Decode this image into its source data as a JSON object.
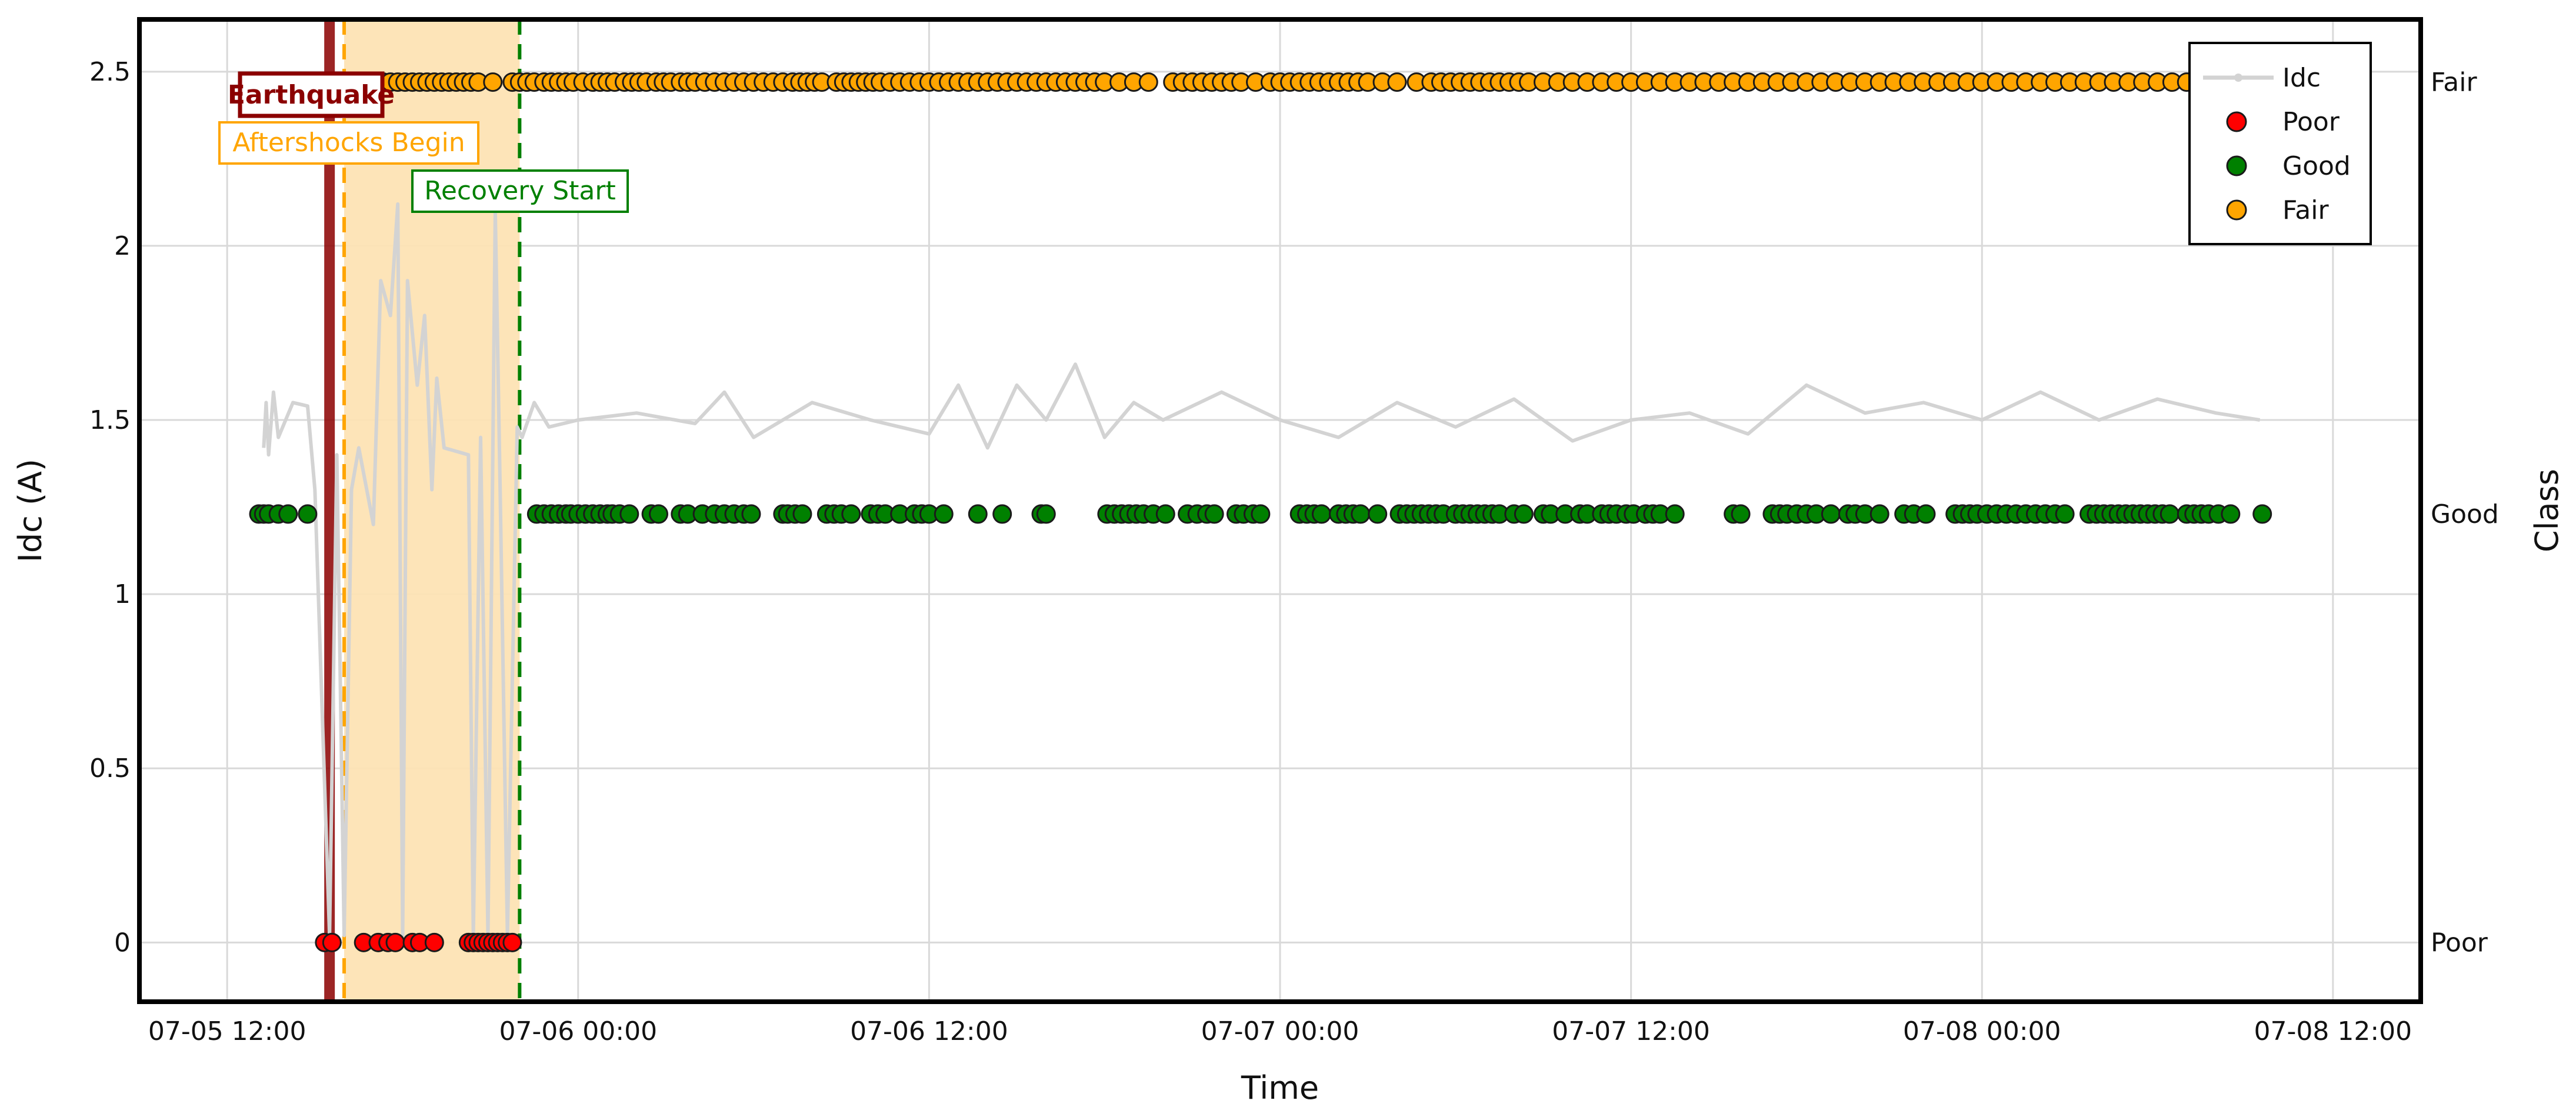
{
  "chart_data": {
    "type": "line+scatter",
    "xlabel": "Time",
    "ylabel": "Idc (A)",
    "y2label": "Class",
    "x_range": [
      "2024-07-05T09:00",
      "2024-07-08T15:00"
    ],
    "ylim": [
      -0.17,
      2.65
    ],
    "y_ticks": [
      0,
      0.5,
      1,
      1.5,
      2,
      2.5
    ],
    "y_tick_labels": [
      "0",
      "0.5",
      "1",
      "1.5",
      "2",
      "2.5"
    ],
    "x_ticks": [
      "2024-07-05T12:00",
      "2024-07-06T00:00",
      "2024-07-06T12:00",
      "2024-07-07T00:00",
      "2024-07-07T12:00",
      "2024-07-08T00:00",
      "2024-07-08T12:00"
    ],
    "x_tick_labels": [
      "07-05 12:00",
      "07-06 00:00",
      "07-06 12:00",
      "07-07 00:00",
      "07-07 12:00",
      "07-08 00:00",
      "07-08 12:00"
    ],
    "y2_ticks": [
      {
        "label": "Poor",
        "y": 0
      },
      {
        "label": "Good",
        "y": 1.23
      },
      {
        "label": "Fair",
        "y": 2.47
      }
    ],
    "grid": true,
    "legend_position": "top-right",
    "legend": [
      {
        "label": "Idc",
        "kind": "line",
        "color": "#d3d3d3"
      },
      {
        "label": "Poor",
        "kind": "marker",
        "color": "#ff0000"
      },
      {
        "label": "Good",
        "kind": "marker",
        "color": "#008000"
      },
      {
        "label": "Fair",
        "kind": "marker",
        "color": "#ffa500"
      }
    ],
    "events": [
      {
        "label": "Earthquake",
        "time": "2024-07-05T15:30",
        "color": "#8b0000"
      },
      {
        "label": "Aftershocks Begin",
        "time": "2024-07-05T16:00",
        "color": "#ffa500"
      },
      {
        "label": "Recovery Start",
        "time": "2024-07-05T22:00",
        "color": "#008000"
      }
    ],
    "shaded_region": {
      "from": "2024-07-05T16:00",
      "to": "2024-07-05T22:00",
      "color": "#fde3b4"
    },
    "series": [
      {
        "name": "Idc",
        "color": "#d3d3d3",
        "points": [
          [
            "2024-07-05T13:15",
            1.42
          ],
          [
            "2024-07-05T13:20",
            1.55
          ],
          [
            "2024-07-05T13:25",
            1.4
          ],
          [
            "2024-07-05T13:35",
            1.58
          ],
          [
            "2024-07-05T13:45",
            1.45
          ],
          [
            "2024-07-05T14:00",
            1.5
          ],
          [
            "2024-07-05T14:15",
            1.55
          ],
          [
            "2024-07-05T14:45",
            1.54
          ],
          [
            "2024-07-05T15:00",
            1.3
          ],
          [
            "2024-07-05T15:30",
            0.02
          ],
          [
            "2024-07-05T15:45",
            1.4
          ],
          [
            "2024-07-05T16:00",
            0.02
          ],
          [
            "2024-07-05T16:15",
            1.3
          ],
          [
            "2024-07-05T16:30",
            1.42
          ],
          [
            "2024-07-05T17:00",
            1.2
          ],
          [
            "2024-07-05T17:15",
            1.9
          ],
          [
            "2024-07-05T17:35",
            1.8
          ],
          [
            "2024-07-05T17:50",
            2.12
          ],
          [
            "2024-07-05T18:00",
            0.02
          ],
          [
            "2024-07-05T18:10",
            1.9
          ],
          [
            "2024-07-05T18:30",
            1.6
          ],
          [
            "2024-07-05T18:45",
            1.8
          ],
          [
            "2024-07-05T19:00",
            1.3
          ],
          [
            "2024-07-05T19:10",
            1.62
          ],
          [
            "2024-07-05T19:25",
            1.42
          ],
          [
            "2024-07-05T20:15",
            1.4
          ],
          [
            "2024-07-05T20:25",
            0.02
          ],
          [
            "2024-07-05T20:40",
            1.45
          ],
          [
            "2024-07-05T20:55",
            0.02
          ],
          [
            "2024-07-05T21:10",
            2.1
          ],
          [
            "2024-07-05T21:20",
            1.3
          ],
          [
            "2024-07-05T21:35",
            0.02
          ],
          [
            "2024-07-05T21:55",
            1.48
          ],
          [
            "2024-07-05T22:05",
            1.45
          ],
          [
            "2024-07-05T22:30",
            1.55
          ],
          [
            "2024-07-05T23:00",
            1.48
          ],
          [
            "2024-07-06T00:00",
            1.5
          ],
          [
            "2024-07-06T02:00",
            1.52
          ],
          [
            "2024-07-06T04:00",
            1.49
          ],
          [
            "2024-07-06T05:00",
            1.58
          ],
          [
            "2024-07-06T06:00",
            1.45
          ],
          [
            "2024-07-06T08:00",
            1.55
          ],
          [
            "2024-07-06T10:00",
            1.5
          ],
          [
            "2024-07-06T12:00",
            1.46
          ],
          [
            "2024-07-06T13:00",
            1.6
          ],
          [
            "2024-07-06T14:00",
            1.42
          ],
          [
            "2024-07-06T15:00",
            1.6
          ],
          [
            "2024-07-06T16:00",
            1.5
          ],
          [
            "2024-07-06T17:00",
            1.66
          ],
          [
            "2024-07-06T18:00",
            1.45
          ],
          [
            "2024-07-06T19:00",
            1.55
          ],
          [
            "2024-07-06T20:00",
            1.5
          ],
          [
            "2024-07-06T22:00",
            1.58
          ],
          [
            "2024-07-07T00:00",
            1.5
          ],
          [
            "2024-07-07T02:00",
            1.45
          ],
          [
            "2024-07-07T04:00",
            1.55
          ],
          [
            "2024-07-07T06:00",
            1.48
          ],
          [
            "2024-07-07T08:00",
            1.56
          ],
          [
            "2024-07-07T10:00",
            1.44
          ],
          [
            "2024-07-07T12:00",
            1.5
          ],
          [
            "2024-07-07T14:00",
            1.52
          ],
          [
            "2024-07-07T16:00",
            1.46
          ],
          [
            "2024-07-07T18:00",
            1.6
          ],
          [
            "2024-07-07T20:00",
            1.52
          ],
          [
            "2024-07-07T22:00",
            1.55
          ],
          [
            "2024-07-08T00:00",
            1.5
          ],
          [
            "2024-07-08T02:00",
            1.58
          ],
          [
            "2024-07-08T04:00",
            1.5
          ],
          [
            "2024-07-08T06:00",
            1.56
          ],
          [
            "2024-07-08T08:00",
            1.52
          ],
          [
            "2024-07-08T09:30",
            1.5
          ]
        ]
      },
      {
        "name": "Poor",
        "color": "#ff0000",
        "y": 0,
        "times": [
          "2024-07-05T15:20",
          "2024-07-05T15:35",
          "2024-07-05T16:40",
          "2024-07-05T17:10",
          "2024-07-05T17:30",
          "2024-07-05T17:45",
          "2024-07-05T18:20",
          "2024-07-05T18:35",
          "2024-07-05T19:05",
          "2024-07-05T20:15",
          "2024-07-05T20:25",
          "2024-07-05T20:35",
          "2024-07-05T20:45",
          "2024-07-05T20:55",
          "2024-07-05T21:05",
          "2024-07-05T21:15",
          "2024-07-05T21:25",
          "2024-07-05T21:35",
          "2024-07-05T21:45"
        ]
      },
      {
        "name": "Good",
        "color": "#008000",
        "y": 1.23,
        "times": [
          "2024-07-05T13:05",
          "2024-07-05T13:15",
          "2024-07-05T13:25",
          "2024-07-05T13:45",
          "2024-07-05T14:05",
          "2024-07-05T14:45",
          "2024-07-05T22:35",
          "2024-07-05T22:50",
          "2024-07-05T23:05",
          "2024-07-05T23:20",
          "2024-07-05T23:35",
          "2024-07-05T23:45",
          "2024-07-06T00:00",
          "2024-07-06T00:15",
          "2024-07-06T00:30",
          "2024-07-06T00:45",
          "2024-07-06T01:00",
          "2024-07-06T01:10",
          "2024-07-06T01:25",
          "2024-07-06T01:45",
          "2024-07-06T02:30",
          "2024-07-06T02:45",
          "2024-07-06T03:30",
          "2024-07-06T03:45",
          "2024-07-06T04:15",
          "2024-07-06T04:40",
          "2024-07-06T05:00",
          "2024-07-06T05:20",
          "2024-07-06T05:40",
          "2024-07-06T05:55",
          "2024-07-06T07:00",
          "2024-07-06T07:10",
          "2024-07-06T07:25",
          "2024-07-06T07:40",
          "2024-07-06T08:30",
          "2024-07-06T08:45",
          "2024-07-06T09:00",
          "2024-07-06T09:20",
          "2024-07-06T10:00",
          "2024-07-06T10:15",
          "2024-07-06T10:30",
          "2024-07-06T11:00",
          "2024-07-06T11:30",
          "2024-07-06T11:45",
          "2024-07-06T12:00",
          "2024-07-06T12:30",
          "2024-07-06T13:40",
          "2024-07-06T14:30",
          "2024-07-06T15:50",
          "2024-07-06T16:00",
          "2024-07-06T18:05",
          "2024-07-06T18:20",
          "2024-07-06T18:35",
          "2024-07-06T18:50",
          "2024-07-06T19:05",
          "2024-07-06T19:20",
          "2024-07-06T19:40",
          "2024-07-06T20:05",
          "2024-07-06T20:50",
          "2024-07-06T21:10",
          "2024-07-06T21:30",
          "2024-07-06T21:45",
          "2024-07-06T22:30",
          "2024-07-06T22:45",
          "2024-07-06T23:05",
          "2024-07-06T23:20",
          "2024-07-07T00:40",
          "2024-07-07T00:55",
          "2024-07-07T01:10",
          "2024-07-07T01:25",
          "2024-07-07T02:00",
          "2024-07-07T02:15",
          "2024-07-07T02:30",
          "2024-07-07T02:45",
          "2024-07-07T03:20",
          "2024-07-07T04:05",
          "2024-07-07T04:20",
          "2024-07-07T04:35",
          "2024-07-07T04:50",
          "2024-07-07T05:05",
          "2024-07-07T05:20",
          "2024-07-07T05:35",
          "2024-07-07T06:00",
          "2024-07-07T06:15",
          "2024-07-07T06:30",
          "2024-07-07T06:45",
          "2024-07-07T07:00",
          "2024-07-07T07:15",
          "2024-07-07T07:30",
          "2024-07-07T08:00",
          "2024-07-07T08:20",
          "2024-07-07T09:00",
          "2024-07-07T09:15",
          "2024-07-07T09:45",
          "2024-07-07T10:15",
          "2024-07-07T10:30",
          "2024-07-07T11:00",
          "2024-07-07T11:15",
          "2024-07-07T11:30",
          "2024-07-07T11:50",
          "2024-07-07T12:05",
          "2024-07-07T12:30",
          "2024-07-07T12:45",
          "2024-07-07T13:00",
          "2024-07-07T13:30",
          "2024-07-07T15:30",
          "2024-07-07T15:45",
          "2024-07-07T16:50",
          "2024-07-07T17:05",
          "2024-07-07T17:20",
          "2024-07-07T17:40",
          "2024-07-07T18:00",
          "2024-07-07T18:20",
          "2024-07-07T18:50",
          "2024-07-07T19:25",
          "2024-07-07T19:40",
          "2024-07-07T20:00",
          "2024-07-07T20:30",
          "2024-07-07T21:20",
          "2024-07-07T21:40",
          "2024-07-07T22:05",
          "2024-07-07T23:05",
          "2024-07-07T23:20",
          "2024-07-07T23:35",
          "2024-07-07T23:50",
          "2024-07-08T00:10",
          "2024-07-08T00:30",
          "2024-07-08T00:50",
          "2024-07-08T01:10",
          "2024-07-08T01:30",
          "2024-07-08T01:50",
          "2024-07-08T02:10",
          "2024-07-08T02:30",
          "2024-07-08T02:50",
          "2024-07-08T03:40",
          "2024-07-08T03:55",
          "2024-07-08T04:10",
          "2024-07-08T04:25",
          "2024-07-08T04:40",
          "2024-07-08T04:55",
          "2024-07-08T05:10",
          "2024-07-08T05:25",
          "2024-07-08T05:40",
          "2024-07-08T05:55",
          "2024-07-08T06:10",
          "2024-07-08T06:25",
          "2024-07-08T07:00",
          "2024-07-08T07:15",
          "2024-07-08T07:30",
          "2024-07-08T07:45",
          "2024-07-08T08:05",
          "2024-07-08T08:30",
          "2024-07-08T09:35"
        ]
      },
      {
        "name": "Fair",
        "color": "#ffa500",
        "y": 2.47,
        "times": [
          "2024-07-05T15:00",
          "2024-07-05T15:15",
          "2024-07-05T15:30",
          "2024-07-05T15:45",
          "2024-07-05T16:00",
          "2024-07-05T16:15",
          "2024-07-05T16:30",
          "2024-07-05T16:50",
          "2024-07-05T17:05",
          "2024-07-05T17:20",
          "2024-07-05T17:35",
          "2024-07-05T17:50",
          "2024-07-05T18:05",
          "2024-07-05T18:20",
          "2024-07-05T18:35",
          "2024-07-05T18:50",
          "2024-07-05T19:05",
          "2024-07-05T19:20",
          "2024-07-05T19:35",
          "2024-07-05T19:50",
          "2024-07-05T20:05",
          "2024-07-05T20:20",
          "2024-07-05T20:35",
          "2024-07-05T21:05",
          "2024-07-05T21:45",
          "2024-07-05T22:00",
          "2024-07-05T22:15",
          "2024-07-05T22:30",
          "2024-07-05T22:50",
          "2024-07-05T23:05",
          "2024-07-05T23:20",
          "2024-07-05T23:35",
          "2024-07-05T23:50",
          "2024-07-06T00:10",
          "2024-07-06T00:30",
          "2024-07-06T00:45",
          "2024-07-06T01:00",
          "2024-07-06T01:15",
          "2024-07-06T01:35",
          "2024-07-06T01:50",
          "2024-07-06T02:05",
          "2024-07-06T02:20",
          "2024-07-06T02:40",
          "2024-07-06T02:55",
          "2024-07-06T03:10",
          "2024-07-06T03:30",
          "2024-07-06T03:45",
          "2024-07-06T04:00",
          "2024-07-06T04:20",
          "2024-07-06T04:40",
          "2024-07-06T05:00",
          "2024-07-06T05:20",
          "2024-07-06T05:40",
          "2024-07-06T06:00",
          "2024-07-06T06:20",
          "2024-07-06T06:40",
          "2024-07-06T07:00",
          "2024-07-06T07:20",
          "2024-07-06T07:35",
          "2024-07-06T07:50",
          "2024-07-06T08:05",
          "2024-07-06T08:20",
          "2024-07-06T08:50",
          "2024-07-06T09:05",
          "2024-07-06T09:20",
          "2024-07-06T09:35",
          "2024-07-06T09:50",
          "2024-07-06T10:05",
          "2024-07-06T10:20",
          "2024-07-06T10:40",
          "2024-07-06T11:00",
          "2024-07-06T11:20",
          "2024-07-06T11:40",
          "2024-07-06T12:00",
          "2024-07-06T12:20",
          "2024-07-06T12:40",
          "2024-07-06T13:00",
          "2024-07-06T13:20",
          "2024-07-06T13:40",
          "2024-07-06T14:00",
          "2024-07-06T14:20",
          "2024-07-06T14:40",
          "2024-07-06T15:00",
          "2024-07-06T15:20",
          "2024-07-06T15:40",
          "2024-07-06T16:00",
          "2024-07-06T16:20",
          "2024-07-06T16:40",
          "2024-07-06T17:00",
          "2024-07-06T17:20",
          "2024-07-06T17:40",
          "2024-07-06T18:00",
          "2024-07-06T18:30",
          "2024-07-06T19:00",
          "2024-07-06T19:30",
          "2024-07-06T20:20",
          "2024-07-06T20:40",
          "2024-07-06T21:00",
          "2024-07-06T21:20",
          "2024-07-06T21:40",
          "2024-07-06T22:00",
          "2024-07-06T22:20",
          "2024-07-06T22:40",
          "2024-07-06T23:10",
          "2024-07-06T23:40",
          "2024-07-07T00:00",
          "2024-07-07T00:20",
          "2024-07-07T00:40",
          "2024-07-07T01:00",
          "2024-07-07T01:20",
          "2024-07-07T01:40",
          "2024-07-07T02:00",
          "2024-07-07T02:20",
          "2024-07-07T02:40",
          "2024-07-07T03:00",
          "2024-07-07T03:30",
          "2024-07-07T04:00",
          "2024-07-07T04:40",
          "2024-07-07T05:10",
          "2024-07-07T05:30",
          "2024-07-07T05:50",
          "2024-07-07T06:10",
          "2024-07-07T06:30",
          "2024-07-07T06:50",
          "2024-07-07T07:10",
          "2024-07-07T07:30",
          "2024-07-07T07:50",
          "2024-07-07T08:10",
          "2024-07-07T08:30",
          "2024-07-07T09:00",
          "2024-07-07T09:30",
          "2024-07-07T10:00",
          "2024-07-07T10:30",
          "2024-07-07T11:00",
          "2024-07-07T11:30",
          "2024-07-07T12:00",
          "2024-07-07T12:30",
          "2024-07-07T13:00",
          "2024-07-07T13:30",
          "2024-07-07T14:00",
          "2024-07-07T14:30",
          "2024-07-07T15:00",
          "2024-07-07T15:30",
          "2024-07-07T16:00",
          "2024-07-07T16:30",
          "2024-07-07T17:00",
          "2024-07-07T17:30",
          "2024-07-07T18:00",
          "2024-07-07T18:30",
          "2024-07-07T19:00",
          "2024-07-07T19:30",
          "2024-07-07T20:00",
          "2024-07-07T20:30",
          "2024-07-07T21:00",
          "2024-07-07T21:30",
          "2024-07-07T22:00",
          "2024-07-07T22:30",
          "2024-07-07T23:00",
          "2024-07-07T23:30",
          "2024-07-08T00:00",
          "2024-07-08T00:30",
          "2024-07-08T01:00",
          "2024-07-08T01:30",
          "2024-07-08T02:00",
          "2024-07-08T02:30",
          "2024-07-08T03:00",
          "2024-07-08T03:30",
          "2024-07-08T04:00",
          "2024-07-08T04:30",
          "2024-07-08T05:00",
          "2024-07-08T05:30",
          "2024-07-08T06:00",
          "2024-07-08T06:30",
          "2024-07-08T07:00",
          "2024-07-08T07:30",
          "2024-07-08T08:00",
          "2024-07-08T08:30",
          "2024-07-08T09:00"
        ]
      }
    ]
  }
}
